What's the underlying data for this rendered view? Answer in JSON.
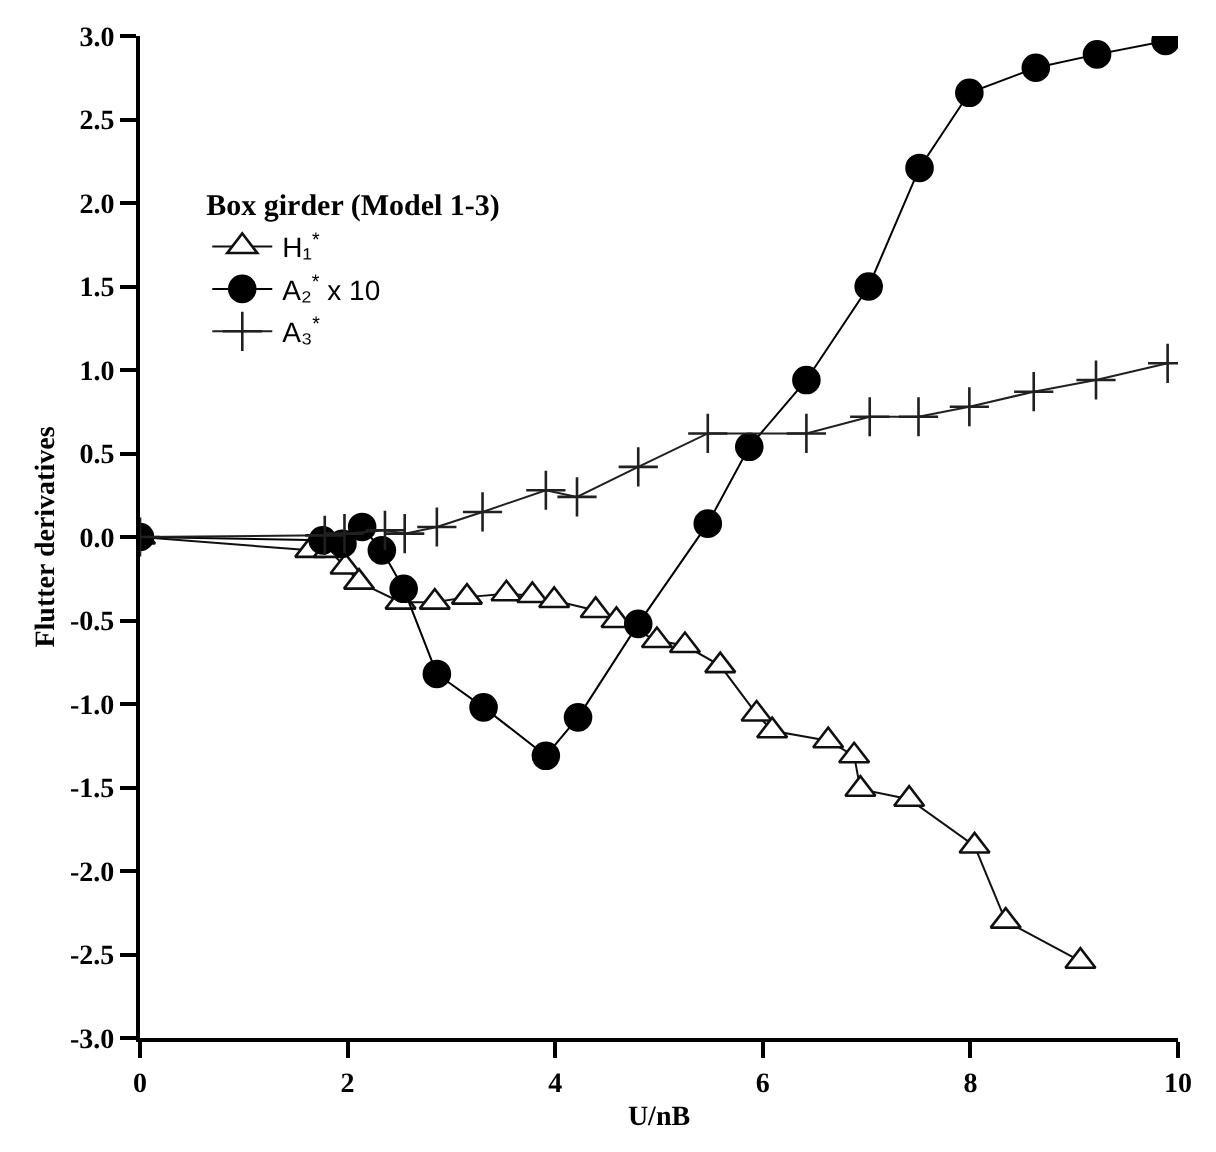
{
  "chart_data": {
    "type": "line",
    "xlabel": "U/nB",
    "ylabel": "Flutter derivatives",
    "legend_title": "Box girder (Model 1-3)",
    "legend": "top left",
    "xlim": [
      0,
      10
    ],
    "xticks": [
      0,
      2,
      4,
      6,
      8,
      10
    ],
    "ylim": [
      -3.0,
      3.0
    ],
    "yticks": [
      {
        "value": -3,
        "label": "-3.0"
      },
      {
        "value": -2.5,
        "label": "-2.5"
      },
      {
        "value": -2,
        "label": "-2.0"
      },
      {
        "value": -1.5,
        "label": "-1.5"
      },
      {
        "value": -1,
        "label": "-1.0"
      },
      {
        "value": -0.5,
        "label": "-0.5"
      },
      {
        "value": 0,
        "label": "0.0"
      },
      {
        "value": 0.5,
        "label": "0.5"
      },
      {
        "value": 1,
        "label": "1.0"
      },
      {
        "value": 1.5,
        "label": "1.5"
      },
      {
        "value": 2,
        "label": "2.0"
      },
      {
        "value": 2.5,
        "label": "2.5"
      },
      {
        "value": 3,
        "label": "3.0"
      }
    ],
    "series": [
      {
        "name": "H₁$^{*}$",
        "color": "#101010",
        "marker": "triangle",
        "x": [
          0,
          1.64,
          1.82,
          1.98,
          2.11,
          2.51,
          2.84,
          3.15,
          3.53,
          3.78,
          3.99,
          4.39,
          4.59,
          4.98,
          5.25,
          5.59,
          5.94,
          6.09,
          6.63,
          6.88,
          6.94,
          7.41,
          8.04,
          8.34,
          9.06
        ],
        "values": [
          0,
          -0.08,
          -0.08,
          -0.18,
          -0.27,
          -0.39,
          -0.39,
          -0.36,
          -0.34,
          -0.35,
          -0.38,
          -0.44,
          -0.5,
          -0.62,
          -0.65,
          -0.77,
          -1.06,
          -1.16,
          -1.22,
          -1.31,
          -1.51,
          -1.57,
          -1.85,
          -2.3,
          -2.54
        ]
      },
      {
        "name": "A₂$^{*}$ x 10",
        "color": "#000000",
        "marker": "circle",
        "x": [
          0,
          1.76,
          1.95,
          2.14,
          2.33,
          2.54,
          2.86,
          3.31,
          3.91,
          4.22,
          4.8,
          5.47,
          5.87,
          6.42,
          7.02,
          7.51,
          7.99,
          8.63,
          9.22,
          9.88
        ],
        "values": [
          0,
          -0.02,
          -0.04,
          0.06,
          -0.08,
          -0.31,
          -0.82,
          -1.02,
          -1.31,
          -1.08,
          -0.52,
          0.08,
          0.54,
          0.94,
          1.5,
          2.21,
          2.66,
          2.81,
          2.89,
          2.97
        ]
      },
      {
        "name": "A₃$^{*}$",
        "color": "#202020",
        "marker": "cross",
        "x": [
          0,
          1.78,
          1.97,
          2.36,
          2.55,
          2.86,
          3.3,
          3.91,
          4.21,
          4.8,
          5.47,
          6.42,
          7.03,
          7.5,
          7.99,
          8.61,
          9.21,
          9.9
        ],
        "values": [
          0,
          0.01,
          0.02,
          0.04,
          0.02,
          0.06,
          0.15,
          0.28,
          0.24,
          0.42,
          0.62,
          0.62,
          0.72,
          0.72,
          0.78,
          0.87,
          0.94,
          1.04
        ]
      }
    ]
  }
}
